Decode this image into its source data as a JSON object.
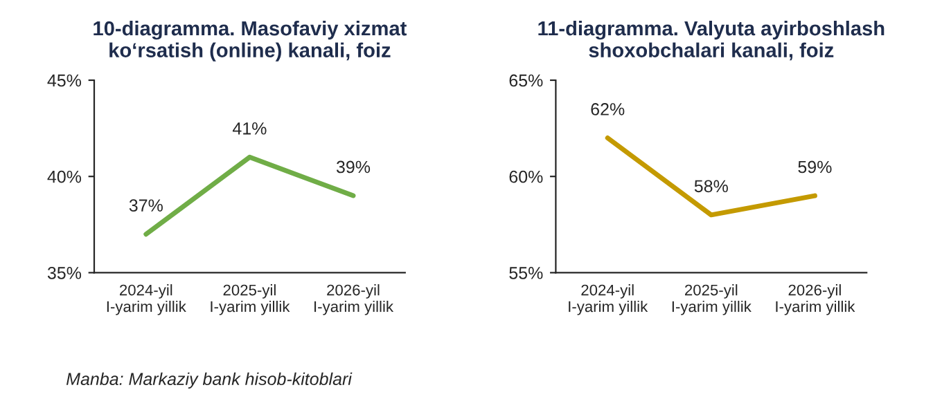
{
  "chart_data": [
    {
      "type": "line",
      "title": "10-diagramma. Masofaviy xizmat\nko‘rsatish (online) kanali, foiz",
      "categories": [
        "2024-yil\nI-yarim yillik",
        "2025-yil\nI-yarim yillik",
        "2026-yil\nI-yarim yillik"
      ],
      "series": [
        {
          "color": "#70ad47",
          "values": [
            37,
            41,
            39
          ]
        }
      ],
      "value_labels": [
        "37%",
        "41%",
        "39%"
      ],
      "ylim": [
        35,
        45
      ],
      "yticks": [
        {
          "value": 35,
          "label": "35%"
        },
        {
          "value": 40,
          "label": "40%"
        },
        {
          "value": 45,
          "label": "45%"
        }
      ],
      "annotations": [
        "Manba: Markaziy bank hisob-kitoblari"
      ]
    },
    {
      "type": "line",
      "title": "11-diagramma. Valyuta ayirboshlash\nshoxobchalari kanali, foiz",
      "categories": [
        "2024-yil\nI-yarim yillik",
        "2025-yil\nI-yarim yillik",
        "2026-yil\nI-yarim yillik"
      ],
      "series": [
        {
          "color": "#c49a00",
          "values": [
            62,
            58,
            59
          ]
        }
      ],
      "value_labels": [
        "62%",
        "58%",
        "59%"
      ],
      "ylim": [
        55,
        65
      ],
      "yticks": [
        {
          "value": 55,
          "label": "55%"
        },
        {
          "value": 60,
          "label": "60%"
        },
        {
          "value": 65,
          "label": "65%"
        }
      ]
    }
  ]
}
